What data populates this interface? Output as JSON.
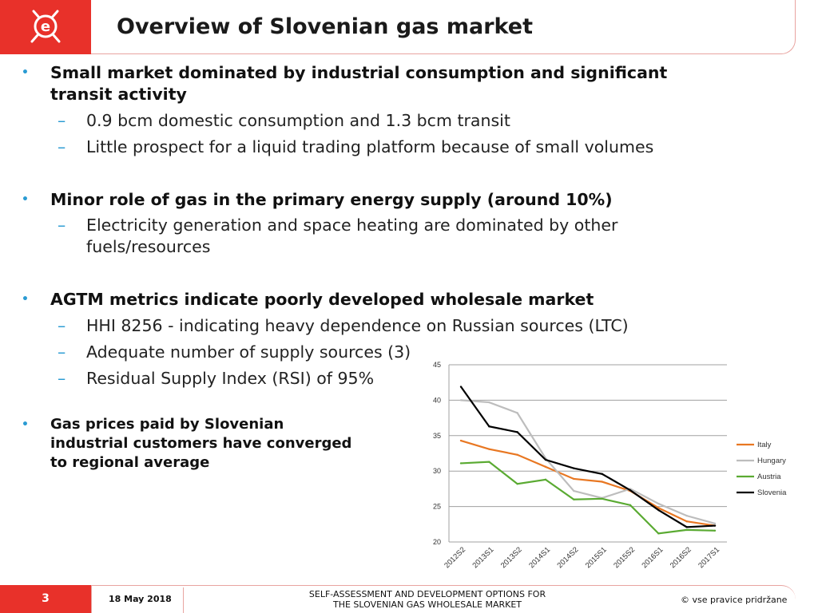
{
  "header": {
    "title": "Overview of Slovenian gas market",
    "logo_icon": "energy-e-logo-icon",
    "brand_color": "#e8312a"
  },
  "bullets": [
    {
      "text_line1": "Small market dominated by industrial consumption and significant",
      "text_line2": "transit activity",
      "subs": [
        "0.9 bcm domestic consumption and 1.3 bcm transit",
        "Little prospect for a  liquid trading platform because of small volumes"
      ]
    },
    {
      "text_line1": "Minor role of gas in the primary energy supply (around 10%)",
      "subs": [
        "Electricity generation and space heating are dominated by other",
        "fuels/resources"
      ]
    },
    {
      "text_line1": "AGTM metrics indicate poorly developed wholesale market",
      "subs": [
        "HHI 8256 - indicating heavy dependence on Russian sources (LTC)",
        "Adequate number of supply sources (3)",
        "Residual Supply Index (RSI) of 95%"
      ]
    },
    {
      "text_line1": "Gas prices paid by Slovenian",
      "text_line2": "industrial customers have converged",
      "text_line3": "to regional average"
    }
  ],
  "chart_data": {
    "type": "line",
    "categories": [
      "2012S2",
      "2013S1",
      "2013S2",
      "2014S1",
      "2014S2",
      "2015S1",
      "2015S2",
      "2016S1",
      "2016S2",
      "2017S1"
    ],
    "ylim": [
      20,
      45
    ],
    "yticks": [
      "20",
      "25",
      "30",
      "35",
      "40",
      "45"
    ],
    "grid": true,
    "legend": "right",
    "series": [
      {
        "name": "Italy",
        "color": "#e87722",
        "values": [
          34.3,
          33.1,
          32.3,
          30.6,
          28.9,
          28.5,
          27.2,
          24.8,
          22.9,
          22.3
        ]
      },
      {
        "name": "Hungary",
        "color": "#bdbdbd",
        "values": [
          40.0,
          39.7,
          38.2,
          31.8,
          27.2,
          26.2,
          27.5,
          25.4,
          23.7,
          22.6
        ]
      },
      {
        "name": "Austria",
        "color": "#5aaa32",
        "values": [
          31.1,
          31.3,
          28.2,
          28.8,
          26.0,
          26.1,
          25.2,
          21.2,
          21.7,
          21.6
        ]
      },
      {
        "name": "Slovenia",
        "color": "#000000",
        "values": [
          41.9,
          36.3,
          35.5,
          31.6,
          30.4,
          29.6,
          27.3,
          24.5,
          22.1,
          22.3
        ]
      }
    ]
  },
  "footer": {
    "page_number": "3",
    "date": "18 May 2018",
    "center_line1": "SELF-ASSESSMENT AND DEVELOPMENT OPTIONS FOR",
    "center_line2": "THE SLOVENIAN GAS WHOLESALE MARKET",
    "copyright": "© vse pravice pridržane"
  }
}
